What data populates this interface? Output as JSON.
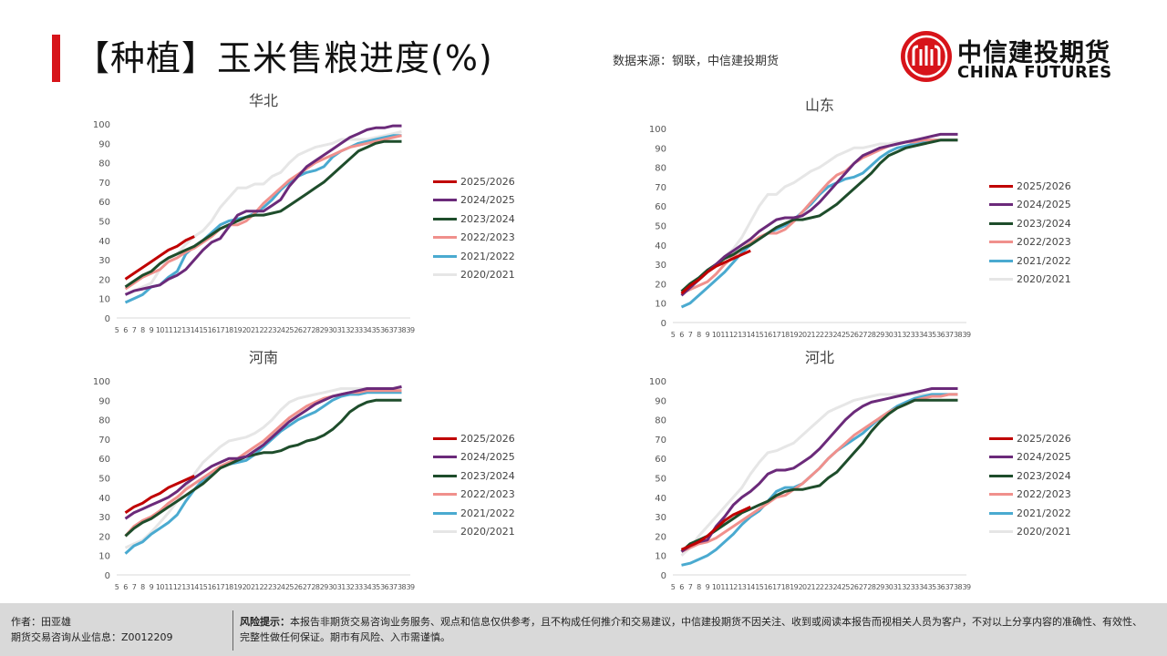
{
  "header": {
    "title": "【种植】玉米售粮进度(%)",
    "source": "数据来源：钢联，中信建投期货",
    "logo_cn": "中信建投期货",
    "logo_en": "CHINA FUTURES"
  },
  "footer": {
    "author": "作者：田亚雄",
    "license": "期货交易咨询从业信息：Z0012209",
    "risk_label": "风险提示：",
    "risk_text": "本报告非期货交易咨询业务服务、观点和信息仅供参考，且不构成任何推介和交易建议，中信建投期货不因关注、收到或阅读本报告而视相关人员为客户，不对以上分享内容的准确性、有效性、完整性做任何保证。期市有风险、入市需谨慎。"
  },
  "colors": {
    "2025/2026": "#c00000",
    "2024/2025": "#6b2a7a",
    "2023/2024": "#1e4d2b",
    "2022/2023": "#f0908c",
    "2021/2022": "#4aaad0",
    "2020/2021": "#e6e6e6"
  },
  "chart_data": [
    {
      "type": "line",
      "title": "华北",
      "x_ticks": [
        5,
        6,
        7,
        8,
        9,
        10,
        11,
        12,
        13,
        14,
        15,
        16,
        17,
        18,
        19,
        20,
        21,
        22,
        23,
        24,
        25,
        26,
        27,
        28,
        29,
        30,
        31,
        32,
        33,
        34,
        35,
        36,
        37,
        38,
        39
      ],
      "y_ticks": [
        0,
        10,
        20,
        30,
        40,
        50,
        60,
        70,
        80,
        90,
        100
      ],
      "ylim": [
        0,
        100
      ],
      "x_start": 6,
      "legend": "right",
      "series": [
        {
          "name": "2025/2026",
          "values": [
            20,
            23,
            26,
            29,
            32,
            35,
            37,
            40,
            42
          ]
        },
        {
          "name": "2024/2025",
          "values": [
            12,
            14,
            15,
            16,
            17,
            20,
            22,
            25,
            30,
            35,
            39,
            41,
            47,
            53,
            55,
            55,
            55,
            58,
            61,
            68,
            73,
            78,
            81,
            84,
            87,
            90,
            93,
            95,
            97,
            98,
            98,
            99,
            99
          ]
        },
        {
          "name": "2023/2024",
          "values": [
            16,
            19,
            22,
            24,
            28,
            31,
            33,
            35,
            37,
            40,
            43,
            46,
            48,
            50,
            52,
            53,
            53,
            54,
            55,
            58,
            61,
            64,
            67,
            70,
            74,
            78,
            82,
            86,
            88,
            90,
            91,
            91,
            91
          ]
        },
        {
          "name": "2022/2023",
          "values": [
            15,
            18,
            21,
            23,
            25,
            29,
            31,
            34,
            36,
            39,
            42,
            46,
            48,
            48,
            50,
            54,
            59,
            63,
            67,
            71,
            74,
            77,
            80,
            82,
            84,
            86,
            88,
            89,
            90,
            91,
            92,
            93,
            94
          ]
        },
        {
          "name": "2021/2022",
          "values": [
            8,
            10,
            12,
            16,
            17,
            21,
            24,
            33,
            37,
            40,
            44,
            48,
            50,
            51,
            52,
            54,
            57,
            61,
            66,
            70,
            73,
            75,
            76,
            78,
            83,
            86,
            88,
            90,
            91,
            92,
            93,
            94,
            94
          ]
        },
        {
          "name": "2020/2021",
          "values": [
            12,
            14,
            16,
            18,
            25,
            30,
            33,
            38,
            42,
            45,
            50,
            57,
            62,
            67,
            67,
            69,
            69,
            73,
            75,
            80,
            84,
            86,
            88,
            89,
            90,
            92,
            92,
            92,
            92,
            93,
            94,
            95,
            96
          ]
        }
      ]
    },
    {
      "type": "line",
      "title": "山东",
      "x_ticks": [
        5,
        6,
        7,
        8,
        9,
        10,
        11,
        12,
        13,
        14,
        15,
        16,
        17,
        18,
        19,
        20,
        21,
        22,
        23,
        24,
        25,
        26,
        27,
        28,
        29,
        30,
        31,
        32,
        33,
        34,
        35,
        36,
        37,
        38,
        39
      ],
      "y_ticks": [
        0,
        10,
        20,
        30,
        40,
        50,
        60,
        70,
        80,
        90,
        100
      ],
      "ylim": [
        0,
        100
      ],
      "x_start": 6,
      "legend": "right",
      "series": [
        {
          "name": "2025/2026",
          "values": [
            15,
            19,
            22,
            26,
            29,
            31,
            33,
            35,
            37
          ]
        },
        {
          "name": "2024/2025",
          "values": [
            14,
            18,
            22,
            26,
            30,
            34,
            37,
            40,
            43,
            47,
            50,
            53,
            54,
            54,
            55,
            58,
            62,
            67,
            72,
            77,
            82,
            86,
            88,
            90,
            91,
            92,
            93,
            94,
            95,
            96,
            97,
            97,
            97
          ]
        },
        {
          "name": "2023/2024",
          "values": [
            16,
            20,
            23,
            27,
            30,
            33,
            35,
            38,
            40,
            43,
            46,
            49,
            51,
            53,
            53,
            54,
            55,
            58,
            61,
            65,
            69,
            73,
            77,
            82,
            86,
            88,
            90,
            91,
            92,
            93,
            94,
            94,
            94
          ]
        },
        {
          "name": "2022/2023",
          "values": [
            15,
            17,
            19,
            21,
            25,
            30,
            34,
            38,
            41,
            44,
            46,
            46,
            48,
            52,
            57,
            62,
            67,
            72,
            76,
            78,
            82,
            85,
            87,
            89,
            91,
            92,
            93,
            93,
            94,
            94,
            94,
            94,
            94
          ]
        },
        {
          "name": "2021/2022",
          "values": [
            8,
            10,
            14,
            18,
            22,
            26,
            31,
            36,
            40,
            43,
            46,
            48,
            50,
            53,
            57,
            61,
            66,
            70,
            72,
            74,
            75,
            77,
            81,
            85,
            88,
            90,
            91,
            92,
            93,
            94,
            94,
            94,
            94
          ]
        },
        {
          "name": "2020/2021",
          "values": [
            14,
            18,
            22,
            27,
            30,
            34,
            38,
            44,
            52,
            60,
            66,
            66,
            70,
            72,
            75,
            78,
            80,
            83,
            86,
            88,
            90,
            90,
            91,
            92,
            92,
            93,
            93,
            93,
            94,
            94,
            94,
            94,
            94
          ]
        }
      ]
    },
    {
      "type": "line",
      "title": "河南",
      "x_ticks": [
        5,
        6,
        7,
        8,
        9,
        10,
        11,
        12,
        13,
        14,
        15,
        16,
        17,
        18,
        19,
        20,
        21,
        22,
        23,
        24,
        25,
        26,
        27,
        28,
        29,
        30,
        31,
        32,
        33,
        34,
        35,
        36,
        37,
        38,
        39
      ],
      "y_ticks": [
        0,
        10,
        20,
        30,
        40,
        50,
        60,
        70,
        80,
        90,
        100
      ],
      "ylim": [
        0,
        100
      ],
      "x_start": 6,
      "legend": "right",
      "series": [
        {
          "name": "2025/2026",
          "values": [
            32,
            35,
            37,
            40,
            42,
            45,
            47,
            49,
            51
          ]
        },
        {
          "name": "2024/2025",
          "values": [
            29,
            32,
            34,
            36,
            38,
            40,
            43,
            47,
            50,
            53,
            56,
            58,
            60,
            60,
            61,
            64,
            67,
            71,
            75,
            79,
            82,
            85,
            88,
            90,
            92,
            93,
            94,
            95,
            96,
            96,
            96,
            96,
            97
          ]
        },
        {
          "name": "2023/2024",
          "values": [
            20,
            24,
            27,
            29,
            32,
            35,
            38,
            41,
            44,
            47,
            51,
            55,
            57,
            59,
            61,
            62,
            63,
            63,
            64,
            66,
            67,
            69,
            70,
            72,
            75,
            79,
            84,
            87,
            89,
            90,
            90,
            90,
            90
          ]
        },
        {
          "name": "2022/2023",
          "values": [
            20,
            25,
            28,
            30,
            33,
            37,
            40,
            44,
            47,
            50,
            53,
            56,
            58,
            60,
            63,
            66,
            69,
            73,
            77,
            81,
            84,
            87,
            89,
            91,
            92,
            93,
            94,
            94,
            95,
            95,
            95,
            95,
            95
          ]
        },
        {
          "name": "2021/2022",
          "values": [
            11,
            15,
            17,
            21,
            24,
            27,
            31,
            38,
            44,
            49,
            52,
            55,
            57,
            58,
            59,
            62,
            66,
            70,
            74,
            77,
            80,
            82,
            84,
            87,
            90,
            92,
            93,
            93,
            94,
            94,
            94,
            94,
            94
          ]
        },
        {
          "name": "2020/2021",
          "values": [
            14,
            16,
            18,
            22,
            27,
            32,
            38,
            45,
            52,
            58,
            62,
            66,
            69,
            70,
            71,
            73,
            76,
            80,
            85,
            89,
            91,
            92,
            93,
            94,
            95,
            96,
            96,
            96,
            96,
            96,
            96,
            96,
            96
          ]
        }
      ]
    },
    {
      "type": "line",
      "title": "河北",
      "x_ticks": [
        5,
        6,
        7,
        8,
        9,
        10,
        11,
        12,
        13,
        14,
        15,
        16,
        17,
        18,
        19,
        20,
        21,
        22,
        23,
        24,
        25,
        26,
        27,
        28,
        29,
        30,
        31,
        32,
        33,
        34,
        35,
        36,
        37,
        38,
        39
      ],
      "y_ticks": [
        0,
        10,
        20,
        30,
        40,
        50,
        60,
        70,
        80,
        90,
        100
      ],
      "ylim": [
        0,
        100
      ],
      "x_start": 6,
      "legend": "right",
      "series": [
        {
          "name": "2025/2026",
          "values": [
            13,
            15,
            17,
            20,
            24,
            28,
            31,
            33,
            35
          ]
        },
        {
          "name": "2024/2025",
          "values": [
            12,
            15,
            17,
            18,
            25,
            30,
            36,
            40,
            43,
            47,
            52,
            54,
            54,
            55,
            58,
            61,
            65,
            70,
            75,
            80,
            84,
            87,
            89,
            90,
            91,
            92,
            93,
            94,
            95,
            96,
            96,
            96,
            96
          ]
        },
        {
          "name": "2023/2024",
          "values": [
            12,
            16,
            18,
            20,
            23,
            26,
            29,
            32,
            34,
            36,
            38,
            41,
            43,
            44,
            44,
            45,
            46,
            50,
            53,
            58,
            63,
            68,
            74,
            79,
            83,
            86,
            88,
            90,
            90,
            90,
            90,
            90,
            90
          ]
        },
        {
          "name": "2022/2023",
          "values": [
            12,
            14,
            16,
            17,
            19,
            22,
            25,
            28,
            31,
            34,
            37,
            40,
            41,
            44,
            47,
            51,
            55,
            60,
            64,
            68,
            72,
            75,
            78,
            81,
            84,
            86,
            88,
            90,
            91,
            92,
            92,
            93,
            93
          ]
        },
        {
          "name": "2021/2022",
          "values": [
            5,
            6,
            8,
            10,
            13,
            17,
            21,
            26,
            30,
            33,
            38,
            43,
            45,
            45,
            47,
            51,
            55,
            60,
            64,
            67,
            70,
            73,
            77,
            81,
            84,
            87,
            89,
            91,
            92,
            93,
            93,
            93,
            93
          ]
        },
        {
          "name": "2020/2021",
          "values": [
            10,
            14,
            20,
            25,
            30,
            35,
            40,
            45,
            52,
            58,
            63,
            64,
            66,
            68,
            72,
            76,
            80,
            84,
            86,
            88,
            90,
            91,
            92,
            93,
            93,
            93,
            93,
            93,
            93,
            93,
            93,
            93,
            93
          ]
        }
      ]
    }
  ]
}
